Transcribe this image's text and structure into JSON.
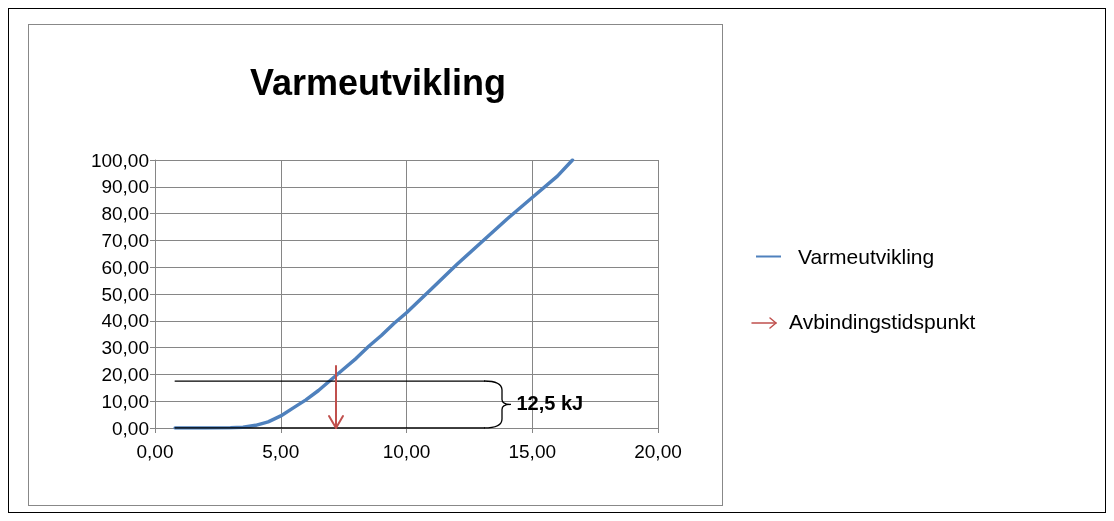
{
  "chart_data": {
    "type": "line",
    "title": "Varmeutvikling",
    "xlim": [
      0,
      20
    ],
    "xticks": [
      {
        "value": 0,
        "label": "0,00"
      },
      {
        "value": 5,
        "label": "5,00"
      },
      {
        "value": 10,
        "label": "10,00"
      },
      {
        "value": 15,
        "label": "15,00"
      },
      {
        "value": 20,
        "label": "20,00"
      }
    ],
    "ylim": [
      0,
      100
    ],
    "yticks": [
      {
        "value": 0,
        "label": "0,00"
      },
      {
        "value": 10,
        "label": "10,00"
      },
      {
        "value": 20,
        "label": "20,00"
      },
      {
        "value": 30,
        "label": "30,00"
      },
      {
        "value": 40,
        "label": "40,00"
      },
      {
        "value": 50,
        "label": "50,00"
      },
      {
        "value": 60,
        "label": "60,00"
      },
      {
        "value": 70,
        "label": "70,00"
      },
      {
        "value": 80,
        "label": "80,00"
      },
      {
        "value": 90,
        "label": "90,00"
      },
      {
        "value": 100,
        "label": "100,00"
      }
    ],
    "series": [
      {
        "name": "Varmeutvikling",
        "color": "#4f81bd",
        "x": [
          0.8,
          2,
          3,
          3.5,
          4,
          4.5,
          5,
          5.5,
          6,
          6.5,
          7,
          7.5,
          8,
          8.5,
          9,
          9.5,
          10,
          11,
          12,
          13,
          14,
          15,
          16,
          16.6
        ],
        "values": [
          0,
          0,
          0.1,
          0.3,
          1,
          2.3,
          4.5,
          7.5,
          10.5,
          14,
          18,
          22,
          26,
          30.5,
          34.5,
          39,
          43,
          52,
          61,
          69.5,
          78,
          86,
          94,
          100
        ]
      },
      {
        "color": "#000000",
        "x": [
          0.8,
          13.1
        ],
        "values": [
          17.5,
          17.5
        ]
      },
      {
        "color": "#000000",
        "x": [
          0.8,
          13.1
        ],
        "values": [
          0,
          0
        ]
      }
    ],
    "annotations": [
      "12,5 kJ"
    ],
    "ref_lines": [
      {
        "axis": "x",
        "value": 7.2,
        "label": "Avbindingstidspunkt",
        "color": "#c0504d"
      }
    ],
    "grid": true,
    "legend": "right",
    "marker": "none",
    "line_style": "solid"
  }
}
